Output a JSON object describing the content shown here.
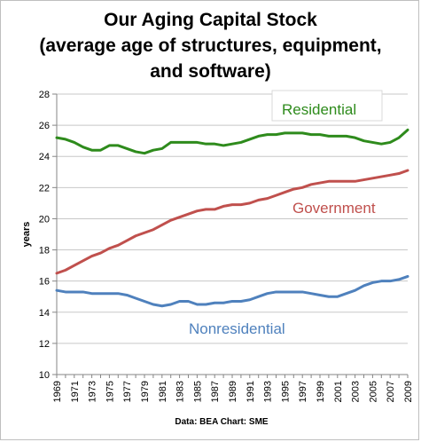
{
  "chart_data": {
    "type": "line",
    "title_lines": [
      "Our Aging Capital Stock",
      "(average age of structures, equipment,",
      "and software)"
    ],
    "xlabel": "",
    "ylabel": "years",
    "ylim": [
      10,
      28
    ],
    "yticks": [
      10,
      12,
      14,
      16,
      18,
      20,
      22,
      24,
      26,
      28
    ],
    "xlim": [
      1969,
      2009
    ],
    "xtick_labels": [
      "1969",
      "1971",
      "1973",
      "1975",
      "1977",
      "1979",
      "1981",
      "1983",
      "1985",
      "1987",
      "1989",
      "1991",
      "1993",
      "1995",
      "1997",
      "1999",
      "2001",
      "2003",
      "2005",
      "2007",
      "2009"
    ],
    "grid": true,
    "x": [
      1969,
      1970,
      1971,
      1972,
      1973,
      1974,
      1975,
      1976,
      1977,
      1978,
      1979,
      1980,
      1981,
      1982,
      1983,
      1984,
      1985,
      1986,
      1987,
      1988,
      1989,
      1990,
      1991,
      1992,
      1993,
      1994,
      1995,
      1996,
      1997,
      1998,
      1999,
      2000,
      2001,
      2002,
      2003,
      2004,
      2005,
      2006,
      2007,
      2008,
      2009
    ],
    "series": [
      {
        "name": "Residential",
        "color": "#2e8b1c",
        "values": [
          25.2,
          25.1,
          24.9,
          24.6,
          24.4,
          24.4,
          24.7,
          24.7,
          24.5,
          24.3,
          24.2,
          24.4,
          24.5,
          24.9,
          24.9,
          24.9,
          24.9,
          24.8,
          24.8,
          24.7,
          24.8,
          24.9,
          25.1,
          25.3,
          25.4,
          25.4,
          25.5,
          25.5,
          25.5,
          25.4,
          25.4,
          25.3,
          25.3,
          25.3,
          25.2,
          25.0,
          24.9,
          24.8,
          24.9,
          25.2,
          25.7
        ]
      },
      {
        "name": "Government",
        "color": "#c0504d",
        "values": [
          16.5,
          16.7,
          17.0,
          17.3,
          17.6,
          17.8,
          18.1,
          18.3,
          18.6,
          18.9,
          19.1,
          19.3,
          19.6,
          19.9,
          20.1,
          20.3,
          20.5,
          20.6,
          20.6,
          20.8,
          20.9,
          20.9,
          21.0,
          21.2,
          21.3,
          21.5,
          21.7,
          21.9,
          22.0,
          22.2,
          22.3,
          22.4,
          22.4,
          22.4,
          22.4,
          22.5,
          22.6,
          22.7,
          22.8,
          22.9,
          23.1
        ]
      },
      {
        "name": "Nonresidential",
        "color": "#4f81bd",
        "values": [
          15.4,
          15.3,
          15.3,
          15.3,
          15.2,
          15.2,
          15.2,
          15.2,
          15.1,
          14.9,
          14.7,
          14.5,
          14.4,
          14.5,
          14.7,
          14.7,
          14.5,
          14.5,
          14.6,
          14.6,
          14.7,
          14.7,
          14.8,
          15.0,
          15.2,
          15.3,
          15.3,
          15.3,
          15.3,
          15.2,
          15.1,
          15.0,
          15.0,
          15.2,
          15.4,
          15.7,
          15.9,
          16.0,
          16.0,
          16.1,
          16.3
        ]
      }
    ],
    "source": "Data: BEA  Chart: SME"
  }
}
